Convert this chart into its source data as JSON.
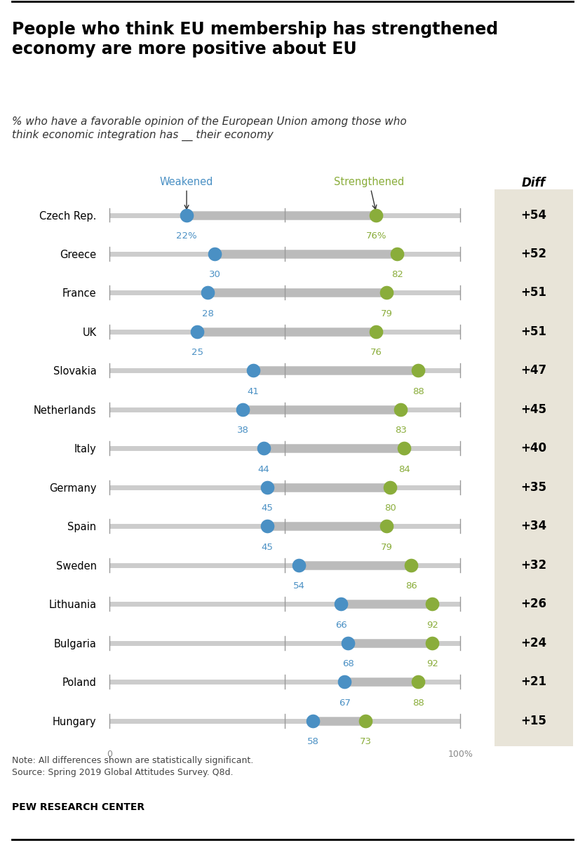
{
  "title": "People who think EU membership has strengthened\neconomy are more positive about EU",
  "subtitle": "% who have a favorable opinion of the European Union among those who\nthink economic integration has __ their economy",
  "countries": [
    "Czech Rep.",
    "Greece",
    "France",
    "UK",
    "Slovakia",
    "Netherlands",
    "Italy",
    "Germany",
    "Spain",
    "Sweden",
    "Lithuania",
    "Bulgaria",
    "Poland",
    "Hungary"
  ],
  "weakened": [
    22,
    30,
    28,
    25,
    41,
    38,
    44,
    45,
    45,
    54,
    66,
    68,
    67,
    58
  ],
  "strengthened": [
    76,
    82,
    79,
    76,
    88,
    83,
    84,
    80,
    79,
    86,
    92,
    92,
    88,
    73
  ],
  "diff": [
    "+54",
    "+52",
    "+51",
    "+51",
    "+47",
    "+45",
    "+40",
    "+35",
    "+34",
    "+32",
    "+26",
    "+24",
    "+21",
    "+15"
  ],
  "weakened_color": "#4a90c4",
  "strengthened_color": "#8aad3b",
  "track_color": "#cccccc",
  "segment_color": "#bbbbbb",
  "diff_bg_color": "#e8e4d8",
  "note": "Note: All differences shown are statistically significant.\nSource: Spring 2019 Global Attitudes Survey. Q8d.",
  "footer": "PEW RESEARCH CENTER",
  "weakened_label": "Weakened",
  "strengthened_label": "Strengthened",
  "diff_label": "Diff"
}
